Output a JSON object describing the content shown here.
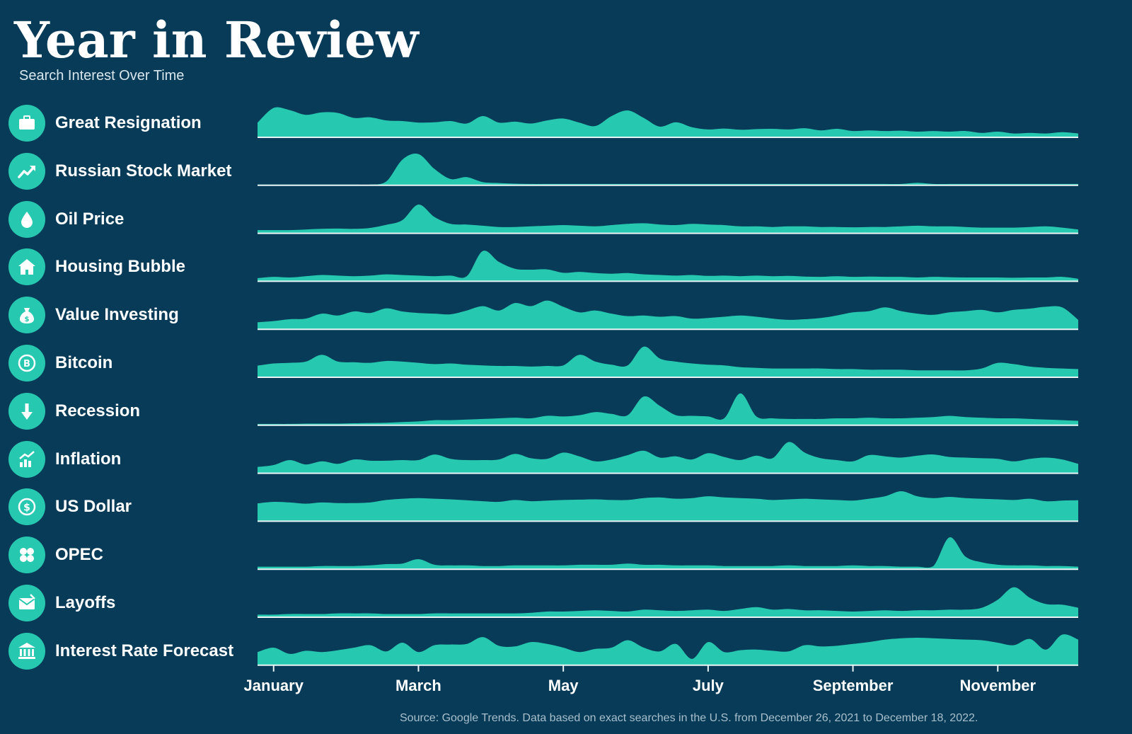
{
  "header": {
    "title": "Year in Review",
    "subtitle": "Search Interest Over Time"
  },
  "footer": {
    "source": "Source: Google Trends. Data based on exact searches in the U.S. from December 26, 2021 to December 18, 2022."
  },
  "colors": {
    "background": "#073b57",
    "area": "#27c8b0",
    "baseline": "#e8f4f6"
  },
  "chart_data": {
    "type": "area",
    "x": [
      "Dec 26",
      "Jan 2",
      "Jan 9",
      "Jan 16",
      "Jan 23",
      "Jan 30",
      "Feb 6",
      "Feb 13",
      "Feb 20",
      "Feb 27",
      "Mar 6",
      "Mar 13",
      "Mar 20",
      "Mar 27",
      "Apr 3",
      "Apr 10",
      "Apr 17",
      "Apr 24",
      "May 1",
      "May 8",
      "May 15",
      "May 22",
      "May 29",
      "Jun 5",
      "Jun 12",
      "Jun 19",
      "Jun 26",
      "Jul 3",
      "Jul 10",
      "Jul 17",
      "Jul 24",
      "Jul 31",
      "Aug 7",
      "Aug 14",
      "Aug 21",
      "Aug 28",
      "Sep 4",
      "Sep 11",
      "Sep 18",
      "Sep 25",
      "Oct 2",
      "Oct 9",
      "Oct 16",
      "Oct 23",
      "Oct 30",
      "Nov 6",
      "Nov 13",
      "Nov 20",
      "Nov 27",
      "Dec 4",
      "Dec 11",
      "Dec 18"
    ],
    "x_tick_labels": [
      {
        "label": "January",
        "at": "Jan 2"
      },
      {
        "label": "March",
        "at": "Mar 6"
      },
      {
        "label": "May",
        "at": "May 8"
      },
      {
        "label": "July",
        "at": "Jul 10"
      },
      {
        "label": "September",
        "at": "Sep 11"
      },
      {
        "label": "November",
        "at": "Nov 13"
      }
    ],
    "ylim": [
      0,
      100
    ],
    "series": [
      {
        "name": "Great Resignation",
        "icon": "briefcase-icon",
        "values": [
          45,
          92,
          85,
          70,
          78,
          76,
          60,
          62,
          52,
          50,
          45,
          46,
          50,
          42,
          66,
          45,
          48,
          42,
          52,
          58,
          45,
          34,
          66,
          84,
          60,
          32,
          46,
          30,
          23,
          26,
          22,
          24,
          25,
          23,
          27,
          20,
          25,
          18,
          20,
          18,
          19,
          16,
          18,
          16,
          18,
          12,
          16,
          10,
          12,
          10,
          14,
          10
        ]
      },
      {
        "name": "Russian Stock Market",
        "icon": "trend-up-icon",
        "values": [
          0,
          0,
          0,
          0,
          0,
          0,
          0,
          0,
          10,
          80,
          98,
          50,
          18,
          24,
          8,
          5,
          3,
          2,
          2,
          2,
          2,
          2,
          2,
          2,
          2,
          2,
          2,
          2,
          2,
          2,
          2,
          2,
          2,
          2,
          2,
          2,
          2,
          2,
          2,
          2,
          2,
          6,
          2,
          2,
          2,
          2,
          2,
          2,
          2,
          2,
          2,
          2
        ]
      },
      {
        "name": "Oil Price",
        "icon": "droplet-icon",
        "values": [
          8,
          8,
          8,
          10,
          12,
          13,
          12,
          15,
          25,
          40,
          90,
          50,
          28,
          26,
          22,
          18,
          18,
          20,
          22,
          24,
          22,
          20,
          24,
          28,
          30,
          26,
          24,
          28,
          26,
          24,
          20,
          20,
          18,
          20,
          20,
          18,
          18,
          17,
          18,
          18,
          20,
          22,
          20,
          20,
          18,
          16,
          16,
          16,
          18,
          20,
          16,
          10
        ]
      },
      {
        "name": "Housing Bubble",
        "icon": "house-icon",
        "values": [
          8,
          12,
          10,
          14,
          18,
          16,
          14,
          16,
          20,
          18,
          16,
          14,
          16,
          14,
          95,
          60,
          38,
          35,
          36,
          25,
          28,
          24,
          22,
          24,
          20,
          18,
          16,
          18,
          15,
          16,
          14,
          16,
          14,
          15,
          13,
          12,
          14,
          12,
          13,
          12,
          12,
          10,
          12,
          11,
          10,
          10,
          10,
          9,
          10,
          10,
          12,
          6
        ]
      },
      {
        "name": "Value Investing",
        "icon": "money-bag-icon",
        "values": [
          20,
          24,
          30,
          32,
          48,
          42,
          55,
          50,
          65,
          55,
          50,
          48,
          46,
          58,
          72,
          58,
          82,
          72,
          90,
          70,
          52,
          58,
          48,
          40,
          42,
          38,
          40,
          32,
          34,
          38,
          42,
          38,
          32,
          28,
          30,
          34,
          42,
          52,
          56,
          68,
          56,
          48,
          44,
          52,
          56,
          60,
          52,
          60,
          64,
          70,
          68,
          28
        ]
      },
      {
        "name": "Bitcoin",
        "icon": "bitcoin-icon",
        "values": [
          35,
          42,
          44,
          48,
          70,
          48,
          46,
          44,
          50,
          48,
          44,
          40,
          42,
          38,
          36,
          34,
          34,
          32,
          34,
          36,
          70,
          48,
          38,
          36,
          96,
          58,
          48,
          42,
          38,
          36,
          30,
          28,
          26,
          26,
          26,
          26,
          24,
          24,
          22,
          22,
          22,
          20,
          20,
          20,
          20,
          26,
          44,
          40,
          32,
          28,
          26,
          24
        ]
      },
      {
        "name": "Recession",
        "icon": "arrow-down-icon",
        "values": [
          2,
          2,
          2,
          3,
          3,
          3,
          4,
          5,
          6,
          8,
          10,
          14,
          14,
          16,
          18,
          20,
          22,
          20,
          28,
          26,
          30,
          40,
          34,
          30,
          90,
          60,
          30,
          28,
          26,
          20,
          100,
          26,
          20,
          18,
          18,
          18,
          20,
          20,
          22,
          20,
          20,
          22,
          24,
          28,
          24,
          22,
          20,
          20,
          18,
          16,
          14,
          12
        ]
      },
      {
        "name": "Inflation",
        "icon": "bar-chart-up-icon",
        "values": [
          18,
          24,
          40,
          26,
          36,
          28,
          42,
          38,
          38,
          40,
          40,
          58,
          44,
          40,
          40,
          42,
          60,
          46,
          44,
          64,
          52,
          36,
          42,
          56,
          70,
          48,
          52,
          42,
          62,
          50,
          40,
          54,
          46,
          98,
          64,
          46,
          40,
          36,
          56,
          52,
          48,
          54,
          58,
          50,
          48,
          46,
          44,
          36,
          44,
          48,
          42,
          28
        ]
      },
      {
        "name": "US Dollar",
        "icon": "dollar-icon",
        "values": [
          55,
          60,
          58,
          54,
          58,
          56,
          56,
          58,
          66,
          70,
          72,
          70,
          68,
          65,
          62,
          60,
          66,
          62,
          64,
          66,
          67,
          68,
          66,
          66,
          72,
          74,
          70,
          72,
          78,
          74,
          72,
          70,
          66,
          68,
          70,
          68,
          66,
          64,
          70,
          78,
          94,
          78,
          72,
          76,
          72,
          70,
          68,
          66,
          70,
          62,
          64,
          65
        ]
      },
      {
        "name": "OPEC",
        "icon": "opec-icon",
        "values": [
          6,
          6,
          6,
          6,
          8,
          8,
          8,
          10,
          14,
          16,
          30,
          12,
          10,
          10,
          8,
          8,
          10,
          10,
          10,
          10,
          12,
          12,
          12,
          16,
          12,
          12,
          10,
          10,
          10,
          8,
          8,
          8,
          8,
          10,
          8,
          8,
          8,
          10,
          8,
          8,
          6,
          6,
          8,
          100,
          38,
          20,
          12,
          10,
          10,
          8,
          8,
          6
        ]
      },
      {
        "name": "Layoffs",
        "icon": "envelope-icon",
        "values": [
          6,
          6,
          8,
          8,
          8,
          10,
          10,
          10,
          8,
          8,
          8,
          10,
          10,
          10,
          10,
          10,
          10,
          12,
          16,
          16,
          18,
          20,
          18,
          16,
          22,
          20,
          18,
          20,
          22,
          18,
          24,
          30,
          22,
          24,
          20,
          20,
          18,
          16,
          18,
          20,
          18,
          20,
          20,
          22,
          22,
          28,
          54,
          94,
          60,
          40,
          38,
          28
        ]
      },
      {
        "name": "Interest Rate Forecast",
        "icon": "bank-icon",
        "values": [
          40,
          54,
          34,
          44,
          40,
          46,
          54,
          62,
          42,
          70,
          40,
          62,
          64,
          66,
          88,
          60,
          58,
          72,
          66,
          54,
          40,
          50,
          54,
          78,
          54,
          42,
          66,
          18,
          72,
          40,
          46,
          48,
          44,
          42,
          62,
          58,
          60,
          66,
          72,
          80,
          84,
          86,
          84,
          82,
          80,
          78,
          70,
          62,
          82,
          48,
          96,
          80
        ]
      }
    ]
  }
}
